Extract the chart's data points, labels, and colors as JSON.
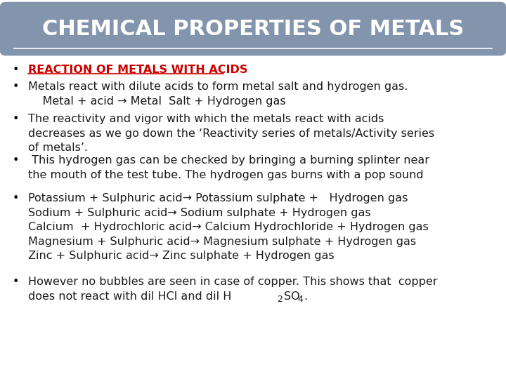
{
  "title": "CHEMICAL PROPERTIES OF METALS",
  "title_bg_color": "#8295ad",
  "title_text_color": "#ffffff",
  "bg_color": "#ffffff",
  "bullet_color": "#000000",
  "heading_color": "#cc0000",
  "body_color": "#1a1a1a",
  "font_size": 11.5,
  "title_font_size": 22,
  "bullet1_heading": "REACTION OF METALS WITH ACIDS",
  "bullet2_line1": "Metals react with dilute acids to form metal salt and hydrogen gas.",
  "bullet2_line2": "    Metal + acid → Metal  Salt + Hydrogen gas",
  "bullet3_line1": "The reactivity and vigor with which the metals react with acids",
  "bullet3_line2": "decreases as we go down the ‘Reactivity series of metals/Activity series",
  "bullet3_line3": "of metals’.",
  "bullet4_line1": " This hydrogen gas can be checked by bringing a burning splinter near",
  "bullet4_line2": "the mouth of the test tube. The hydrogen gas burns with a pop sound",
  "bullet5_line1": "Potassium + Sulphuric acid→ Potassium sulphate +   Hydrogen gas",
  "bullet5_line2": "Sodium + Sulphuric acid→ Sodium sulphate + Hydrogen gas",
  "bullet5_line3": "Calcium  + Hydrochloric acid→ Calcium Hydrochloride + Hydrogen gas",
  "bullet5_line4": "Magnesium + Sulphuric acid→ Magnesium sulphate + Hydrogen gas",
  "bullet5_line5": "Zinc + Sulphuric acid→ Zinc sulphate + Hydrogen gas",
  "bullet6_line1": "However no bubbles are seen in case of copper. This shows that  copper",
  "bullet6_line2_pre": "does not react with dil HCl and dil H",
  "bullet6_sub1": "2",
  "bullet6_mid": "SO",
  "bullet6_sub2": "4",
  "bullet6_end": "."
}
